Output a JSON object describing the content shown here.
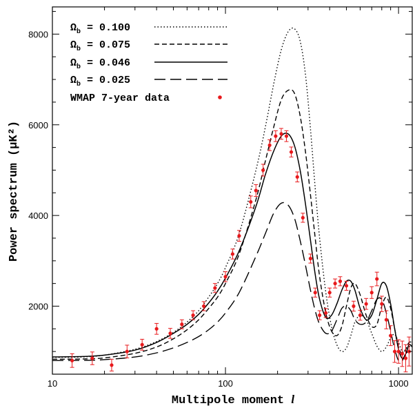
{
  "chart_data": {
    "type": "line",
    "xscale": "log",
    "xlabel_main": "Multipole moment ",
    "xlabel_var": "l",
    "ylabel": "Power spectrum (µK²)",
    "xlim": [
      10,
      1200
    ],
    "ylim": [
      500,
      8600
    ],
    "xticks": [
      10,
      100,
      1000
    ],
    "xtick_labels": [
      "10",
      "100",
      "1000"
    ],
    "yticks": [
      2000,
      4000,
      6000,
      8000
    ],
    "ytick_labels": [
      "2000",
      "4000",
      "6000",
      "8000"
    ],
    "grid": false,
    "legend_position": "top-left",
    "colors": {
      "data_points": "#e8191c",
      "lines": "#000000"
    },
    "series": [
      {
        "name": "Ω",
        "name_sub": "b",
        "name_value": " = 0.100",
        "dash": "dotted",
        "x": [
          10,
          15,
          20,
          30,
          40,
          50,
          60,
          70,
          80,
          90,
          100,
          120,
          150,
          170,
          190,
          210,
          230,
          250,
          270,
          290,
          310,
          330,
          350,
          380,
          410,
          440,
          470,
          500,
          530,
          560,
          600,
          650,
          700,
          750,
          800,
          850,
          900,
          950,
          1000,
          1050,
          1100,
          1150,
          1200
        ],
        "y": [
          870,
          880,
          920,
          1050,
          1220,
          1420,
          1650,
          1900,
          2200,
          2500,
          2850,
          3600,
          5000,
          5950,
          6900,
          7650,
          8050,
          8120,
          7850,
          7100,
          5900,
          4600,
          3500,
          2300,
          1550,
          1150,
          1000,
          1080,
          1350,
          1650,
          1800,
          1700,
          1400,
          1120,
          1000,
          1100,
          1300,
          1380,
          1200,
          1000,
          1000,
          1100,
          1150
        ]
      },
      {
        "name": "Ω",
        "name_sub": "b",
        "name_value": " = 0.075",
        "dash": "dashed",
        "x": [
          10,
          15,
          20,
          30,
          40,
          50,
          60,
          70,
          80,
          90,
          100,
          120,
          150,
          170,
          190,
          210,
          230,
          250,
          270,
          290,
          310,
          330,
          350,
          380,
          410,
          440,
          470,
          500,
          530,
          560,
          600,
          650,
          700,
          750,
          800,
          850,
          900,
          950,
          1000,
          1050,
          1100,
          1150,
          1200
        ],
        "y": [
          830,
          835,
          860,
          960,
          1100,
          1280,
          1480,
          1700,
          1950,
          2200,
          2500,
          3150,
          4350,
          5200,
          5950,
          6550,
          6760,
          6700,
          6200,
          5400,
          4450,
          3500,
          2650,
          1850,
          1450,
          1350,
          1550,
          2000,
          2400,
          2500,
          2250,
          1800,
          1550,
          1600,
          2000,
          2200,
          1950,
          1500,
          1100,
          950,
          1050,
          1200,
          1200
        ]
      },
      {
        "name": "Ω",
        "name_sub": "b",
        "name_value": " = 0.046",
        "dash": "solid",
        "x": [
          10,
          15,
          20,
          30,
          40,
          50,
          60,
          70,
          80,
          90,
          100,
          120,
          150,
          170,
          190,
          210,
          230,
          250,
          270,
          290,
          310,
          330,
          350,
          380,
          410,
          440,
          470,
          500,
          530,
          560,
          600,
          650,
          700,
          750,
          800,
          850,
          900,
          950,
          1000,
          1050,
          1100,
          1150,
          1200
        ],
        "y": [
          880,
          890,
          920,
          1030,
          1200,
          1400,
          1600,
          1820,
          2070,
          2330,
          2620,
          3220,
          4200,
          4900,
          5420,
          5750,
          5800,
          5550,
          5000,
          4250,
          3450,
          2700,
          2150,
          1750,
          1800,
          2050,
          2350,
          2550,
          2550,
          2350,
          1950,
          1700,
          1800,
          2150,
          2500,
          2450,
          2050,
          1500,
          1050,
          850,
          950,
          1150,
          1100
        ]
      },
      {
        "name": "Ω",
        "name_sub": "b",
        "name_value": " = 0.025",
        "dash": "long-dashed",
        "x": [
          10,
          15,
          20,
          30,
          40,
          50,
          60,
          70,
          80,
          90,
          100,
          120,
          150,
          170,
          190,
          210,
          230,
          250,
          270,
          290,
          310,
          330,
          350,
          380,
          410,
          440,
          470,
          500,
          530,
          560,
          600,
          650,
          700,
          750,
          800,
          850,
          900,
          950,
          1000,
          1050,
          1100,
          1150,
          1200
        ],
        "y": [
          800,
          805,
          820,
          880,
          970,
          1080,
          1200,
          1330,
          1480,
          1650,
          1850,
          2300,
          3100,
          3600,
          4050,
          4270,
          4230,
          3950,
          3450,
          2900,
          2350,
          1900,
          1600,
          1400,
          1450,
          1700,
          1950,
          2000,
          1900,
          1700,
          1600,
          1650,
          1900,
          2150,
          2150,
          1850,
          1450,
          1050,
          800,
          800,
          950,
          1000,
          950
        ]
      }
    ],
    "points": {
      "name": "WMAP 7-year data",
      "x": [
        13,
        17,
        22,
        27,
        33,
        40,
        48,
        56,
        65,
        75,
        87,
        100,
        110,
        120,
        140,
        150,
        165,
        180,
        195,
        210,
        225,
        240,
        260,
        280,
        310,
        330,
        350,
        380,
        400,
        430,
        460,
        500,
        550,
        600,
        650,
        700,
        750,
        800,
        850,
        900,
        950,
        1000,
        1050,
        1100,
        1150
      ],
      "y": [
        800,
        850,
        700,
        1000,
        1150,
        1500,
        1400,
        1600,
        1800,
        2000,
        2400,
        2650,
        3150,
        3550,
        4300,
        4550,
        5000,
        5550,
        5750,
        5800,
        5750,
        5400,
        4850,
        3950,
        3050,
        2300,
        1800,
        1850,
        2300,
        2500,
        2550,
        2450,
        2000,
        1800,
        2050,
        2300,
        2600,
        2050,
        1700,
        1350,
        1000,
        1000,
        950,
        850,
        1000
      ],
      "err": [
        150,
        140,
        130,
        140,
        120,
        120,
        110,
        100,
        100,
        100,
        100,
        110,
        110,
        120,
        130,
        130,
        130,
        120,
        120,
        120,
        120,
        110,
        110,
        100,
        100,
        100,
        100,
        100,
        100,
        100,
        100,
        100,
        110,
        110,
        120,
        130,
        150,
        170,
        200,
        220,
        240,
        260,
        280,
        300,
        320
      ]
    }
  }
}
